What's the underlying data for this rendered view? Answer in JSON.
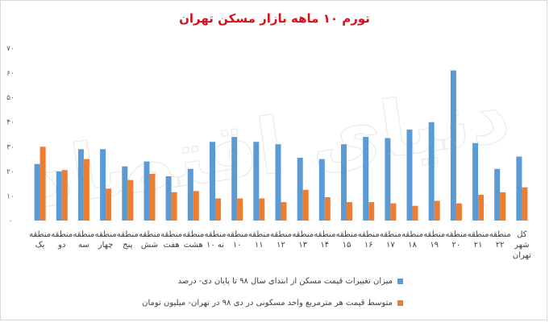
{
  "title": "تورم ۱۰ ماهه بازار مسکن تهران",
  "colors": {
    "blue": "#5b9bd5",
    "orange": "#ed7d31",
    "title": "#d6101d"
  },
  "watermark": "دنیای اقتصاد",
  "chart_data": {
    "type": "bar",
    "categories": [
      "منطقه یک",
      "منطقه دو",
      "منطقه سه",
      "منطقه چهار",
      "منطقه پنج",
      "منطقه شش",
      "منطقه هفت",
      "منطقه هشت",
      "منطقه ۱۰ نه",
      "منطقه ۱۰",
      "منطقه ۱۱",
      "منطقه ۱۲",
      "منطقه ۱۳",
      "منطقه ۱۴",
      "منطقه ۱۵",
      "منطقه ۱۶",
      "منطقه ۱۷",
      "منطقه ۱۸",
      "منطقه ۱۹",
      "منطقه ۲۰",
      "منطقه ۲۱",
      "منطقه ۲۲",
      "کل شهر تهران"
    ],
    "category_lines": [
      [
        "منطقه",
        "یک"
      ],
      [
        "منطقه",
        "دو"
      ],
      [
        "منطقه",
        "سه"
      ],
      [
        "منطقه",
        "چهار"
      ],
      [
        "منطقه",
        "پنج"
      ],
      [
        "منطقه",
        "شش"
      ],
      [
        "منطقه",
        "هفت"
      ],
      [
        "منطقه",
        "هشت"
      ],
      [
        "منطقه",
        "۱۰ نه"
      ],
      [
        "منطقه",
        "۱۰"
      ],
      [
        "منطقه",
        "۱۱"
      ],
      [
        "منطقه",
        "۱۲"
      ],
      [
        "منطقه",
        "۱۳"
      ],
      [
        "منطقه",
        "۱۴"
      ],
      [
        "منطقه",
        "۱۵"
      ],
      [
        "منطقه",
        "۱۶"
      ],
      [
        "منطقه",
        "۱۷"
      ],
      [
        "منطقه",
        "۱۸"
      ],
      [
        "منطقه",
        "۱۹"
      ],
      [
        "منطقه",
        "۲۰"
      ],
      [
        "منطقه",
        "۲۱"
      ],
      [
        "منطقه",
        "۲۲"
      ],
      [
        "کل",
        "شهر",
        "تهران"
      ]
    ],
    "series": [
      {
        "name": "میزان تغییرات قیمت مسکن از ابتدای سال ۹۸ تا پایان دی- درصد",
        "values": [
          23,
          20,
          29,
          29,
          22,
          24,
          18,
          21,
          32,
          34,
          32,
          31,
          25.5,
          25,
          31,
          34,
          33.5,
          37,
          40,
          61,
          31.5,
          21,
          26
        ]
      },
      {
        "name": "متوسط قیمت هر مترمربع واحد مسکونی در دی ۹۸ در تهران- میلیون تومان",
        "values": [
          30,
          20.5,
          25,
          13,
          16.5,
          19,
          11.5,
          12,
          9,
          9,
          9,
          7.5,
          12.5,
          9.5,
          7.5,
          7.5,
          7,
          6,
          8,
          7,
          10.5,
          11.5,
          13.5
        ]
      }
    ],
    "yticks": [
      "۰",
      "۱۰",
      "۲۰",
      "۳۰",
      "۴۰",
      "۵۰",
      "۶۰",
      "۷۰"
    ],
    "ylim": [
      0,
      70
    ],
    "grid": false,
    "legend_position": "bottom"
  }
}
